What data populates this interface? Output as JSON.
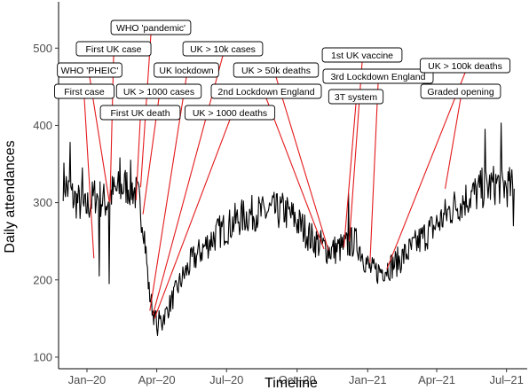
{
  "chart_data": {
    "type": "line",
    "xlabel": "Timeline",
    "ylabel": "Daily attendances",
    "ylim": [
      85,
      560
    ],
    "xlim": [
      "2019-11-25",
      "2021-07-28"
    ],
    "yticks": [
      100,
      200,
      300,
      400,
      500
    ],
    "xticks": [
      {
        "date": "2020-01-01",
        "label": "Jan–20"
      },
      {
        "date": "2020-04-01",
        "label": "Apr–20"
      },
      {
        "date": "2020-07-01",
        "label": "Jul–20"
      },
      {
        "date": "2020-10-01",
        "label": "Oct–20"
      },
      {
        "date": "2021-01-01",
        "label": "Jan–21"
      },
      {
        "date": "2021-04-01",
        "label": "Apr–21"
      },
      {
        "date": "2021-07-01",
        "label": "Jul–21"
      }
    ],
    "grid": false,
    "line_color": "#000000",
    "annotation_color": "#e41a1c",
    "series": [
      {
        "points": [
          [
            "2019-12-01",
            330
          ],
          [
            "2019-12-08",
            315
          ],
          [
            "2019-12-15",
            305
          ],
          [
            "2019-12-22",
            300
          ],
          [
            "2019-12-29",
            290
          ],
          [
            "2020-01-05",
            300
          ],
          [
            "2020-01-12",
            310
          ],
          [
            "2020-01-19",
            305
          ],
          [
            "2020-01-26",
            300
          ],
          [
            "2020-02-02",
            312
          ],
          [
            "2020-02-09",
            315
          ],
          [
            "2020-02-16",
            320
          ],
          [
            "2020-02-23",
            322
          ],
          [
            "2020-03-01",
            318
          ],
          [
            "2020-03-08",
            305
          ],
          [
            "2020-03-15",
            270
          ],
          [
            "2020-03-22",
            185
          ],
          [
            "2020-03-29",
            150
          ],
          [
            "2020-04-05",
            148
          ],
          [
            "2020-04-12",
            155
          ],
          [
            "2020-04-19",
            170
          ],
          [
            "2020-04-26",
            185
          ],
          [
            "2020-05-03",
            200
          ],
          [
            "2020-05-10",
            212
          ],
          [
            "2020-05-17",
            225
          ],
          [
            "2020-05-24",
            232
          ],
          [
            "2020-05-31",
            240
          ],
          [
            "2020-06-07",
            248
          ],
          [
            "2020-06-14",
            255
          ],
          [
            "2020-06-21",
            262
          ],
          [
            "2020-06-28",
            266
          ],
          [
            "2020-07-05",
            270
          ],
          [
            "2020-07-12",
            276
          ],
          [
            "2020-07-19",
            280
          ],
          [
            "2020-07-26",
            283
          ],
          [
            "2020-08-02",
            285
          ],
          [
            "2020-08-09",
            288
          ],
          [
            "2020-08-16",
            285
          ],
          [
            "2020-08-23",
            288
          ],
          [
            "2020-08-30",
            290
          ],
          [
            "2020-09-06",
            288
          ],
          [
            "2020-09-13",
            290
          ],
          [
            "2020-09-20",
            285
          ],
          [
            "2020-09-27",
            280
          ],
          [
            "2020-10-04",
            272
          ],
          [
            "2020-10-11",
            265
          ],
          [
            "2020-10-18",
            255
          ],
          [
            "2020-10-25",
            250
          ],
          [
            "2020-11-01",
            245
          ],
          [
            "2020-11-08",
            240
          ],
          [
            "2020-11-15",
            238
          ],
          [
            "2020-11-22",
            240
          ],
          [
            "2020-11-29",
            242
          ],
          [
            "2020-12-06",
            245
          ],
          [
            "2020-12-13",
            250
          ],
          [
            "2020-12-20",
            245
          ],
          [
            "2020-12-27",
            230
          ],
          [
            "2021-01-03",
            215
          ],
          [
            "2021-01-10",
            210
          ],
          [
            "2021-01-17",
            212
          ],
          [
            "2021-01-24",
            215
          ],
          [
            "2021-01-31",
            218
          ],
          [
            "2021-02-07",
            222
          ],
          [
            "2021-02-14",
            228
          ],
          [
            "2021-02-21",
            235
          ],
          [
            "2021-02-28",
            240
          ],
          [
            "2021-03-07",
            248
          ],
          [
            "2021-03-14",
            255
          ],
          [
            "2021-03-21",
            262
          ],
          [
            "2021-03-28",
            268
          ],
          [
            "2021-04-04",
            275
          ],
          [
            "2021-04-11",
            282
          ],
          [
            "2021-04-18",
            290
          ],
          [
            "2021-04-25",
            296
          ],
          [
            "2021-05-02",
            300
          ],
          [
            "2021-05-09",
            305
          ],
          [
            "2021-05-16",
            310
          ],
          [
            "2021-05-23",
            312
          ],
          [
            "2021-05-30",
            318
          ],
          [
            "2021-06-06",
            320
          ],
          [
            "2021-06-13",
            322
          ],
          [
            "2021-06-20",
            325
          ],
          [
            "2021-06-27",
            322
          ],
          [
            "2021-07-04",
            320
          ],
          [
            "2021-07-11",
            318
          ]
        ]
      }
    ],
    "spikes": [
      [
        "2019-12-10",
        378
      ],
      [
        "2019-12-26",
        345
      ],
      [
        "2020-01-17",
        205
      ],
      [
        "2020-01-30",
        195
      ],
      [
        "2020-02-13",
        358
      ],
      [
        "2020-02-27",
        355
      ],
      [
        "2020-04-02",
        128
      ],
      [
        "2020-04-08",
        135
      ],
      [
        "2021-06-03",
        395
      ],
      [
        "2021-06-24",
        403
      ],
      [
        "2021-07-10",
        270
      ],
      [
        "2020-12-07",
        312
      ]
    ],
    "annotations": [
      {
        "label": "WHO 'pandemic'",
        "date": "2020-03-11",
        "y": 320
      },
      {
        "label": "First UK case",
        "date": "2020-01-31",
        "y": 300
      },
      {
        "label": "UK > 10k cases",
        "date": "2020-03-27",
        "y": 155
      },
      {
        "label": "WHO 'PHEIC'",
        "date": "2020-01-30",
        "y": 302
      },
      {
        "label": "UK lockdown",
        "date": "2020-03-23",
        "y": 160
      },
      {
        "label": "UK > 50k deaths",
        "date": "2020-11-11",
        "y": 238
      },
      {
        "label": "1st UK vaccine",
        "date": "2020-12-08",
        "y": 250
      },
      {
        "label": "3rd Lockdown England",
        "date": "2021-01-04",
        "y": 222
      },
      {
        "label": "UK > 100k deaths",
        "date": "2021-01-26",
        "y": 214
      },
      {
        "label": "First case",
        "date": "2020-01-10",
        "y": 228
      },
      {
        "label": "UK > 1000 cases",
        "date": "2020-03-14",
        "y": 285
      },
      {
        "label": "2nd Lockdown England",
        "date": "2020-11-05",
        "y": 240
      },
      {
        "label": "3T system",
        "date": "2020-12-01",
        "y": 242
      },
      {
        "label": "Graded opening",
        "date": "2021-04-12",
        "y": 318
      },
      {
        "label": "First UK death",
        "date": "2020-03-05",
        "y": 303
      },
      {
        "label": "UK > 1000 deaths",
        "date": "2020-03-29",
        "y": 150
      }
    ]
  }
}
